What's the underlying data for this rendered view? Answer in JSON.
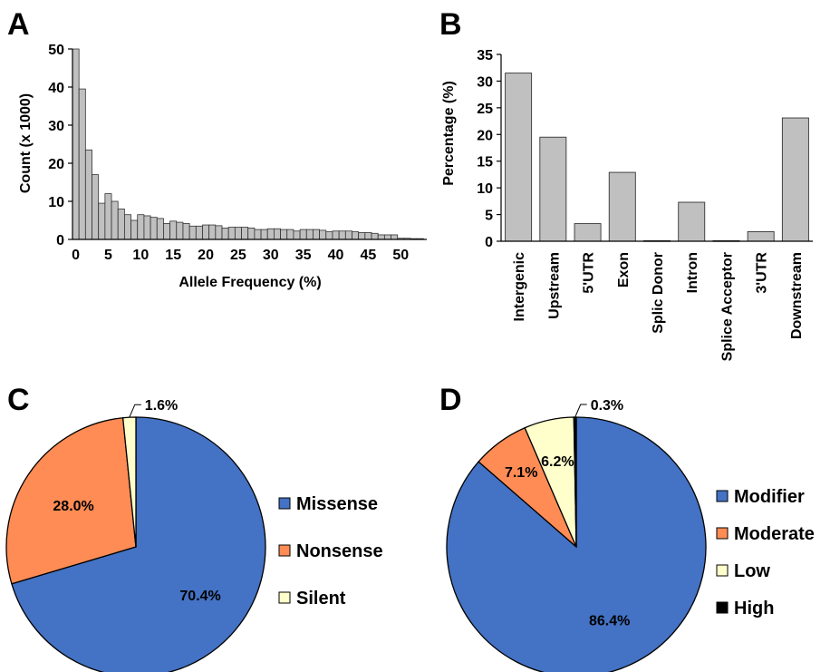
{
  "chart_data": [
    {
      "panel": "A",
      "type": "bar",
      "xlabel": "Allele Frequency (%)",
      "ylabel": "Count (x 1000)",
      "ylim": [
        0,
        50
      ],
      "xlim": [
        -0.5,
        54
      ],
      "y_ticks": [
        "0",
        "10",
        "20",
        "30",
        "40",
        "50"
      ],
      "x_ticks": [
        "0",
        "5",
        "10",
        "15",
        "20",
        "25",
        "30",
        "35",
        "40",
        "45",
        "50"
      ],
      "grid": false,
      "bar_color": "#c0c0c0",
      "x": [
        0,
        1,
        2,
        3,
        4,
        5,
        6,
        7,
        8,
        9,
        10,
        11,
        12,
        13,
        14,
        15,
        16,
        17,
        18,
        19,
        20,
        21,
        22,
        23,
        24,
        25,
        26,
        27,
        28,
        29,
        30,
        31,
        32,
        33,
        34,
        35,
        36,
        37,
        38,
        39,
        40,
        41,
        42,
        43,
        44,
        45,
        46,
        47,
        48,
        49,
        50,
        51,
        52,
        53
      ],
      "values": [
        50,
        39.5,
        23.5,
        17,
        9.5,
        12,
        10,
        8,
        6.5,
        5,
        6.5,
        6.2,
        5.8,
        5.5,
        4.2,
        4.8,
        4.5,
        4.2,
        3.5,
        3.5,
        3.8,
        3.8,
        3.6,
        3,
        3.2,
        3.2,
        3.2,
        3,
        2.6,
        2.6,
        2.8,
        2.8,
        2.6,
        2.6,
        2.2,
        2.6,
        2.6,
        2.6,
        2.4,
        2,
        2.2,
        2.2,
        2.2,
        2,
        1.8,
        1.8,
        1.6,
        1.2,
        1.2,
        1.2,
        0.3,
        0.3,
        0.2,
        0.2
      ]
    },
    {
      "panel": "B",
      "type": "bar",
      "ylabel": "Percentage (%)",
      "ylim": [
        0,
        35
      ],
      "y_ticks": [
        "0",
        "5",
        "10",
        "15",
        "20",
        "25",
        "30",
        "35"
      ],
      "grid": false,
      "bar_color": "#c0c0c0",
      "categories": [
        "Intergenic",
        "Upstream",
        "5'UTR",
        "Exon",
        "Splic Donor",
        "Intron",
        "Splice Acceptor",
        "3'UTR",
        "Downstream"
      ],
      "values": [
        31.5,
        19.5,
        3.3,
        12.9,
        0.1,
        7.3,
        0.1,
        1.8,
        23.1
      ]
    },
    {
      "panel": "C",
      "type": "pie",
      "legend_position": "right",
      "slices": [
        {
          "name": "Missense",
          "value": 70.4,
          "label": "70.4%",
          "color": "#4472c4"
        },
        {
          "name": "Nonsense",
          "value": 28.0,
          "label": "28.0%",
          "color": "#ff8c55"
        },
        {
          "name": "Silent",
          "value": 1.6,
          "label": "1.6%",
          "color": "#ffffcc"
        }
      ]
    },
    {
      "panel": "D",
      "type": "pie",
      "legend_position": "right",
      "slices": [
        {
          "name": "Modifier",
          "value": 86.4,
          "label": "86.4%",
          "color": "#4472c4"
        },
        {
          "name": "Moderate",
          "value": 7.1,
          "label": "7.1%",
          "color": "#ff8c55"
        },
        {
          "name": "Low",
          "value": 6.2,
          "label": "6.2%",
          "color": "#ffffcc"
        },
        {
          "name": "High",
          "value": 0.3,
          "label": "0.3%",
          "color": "#000000"
        }
      ]
    }
  ]
}
